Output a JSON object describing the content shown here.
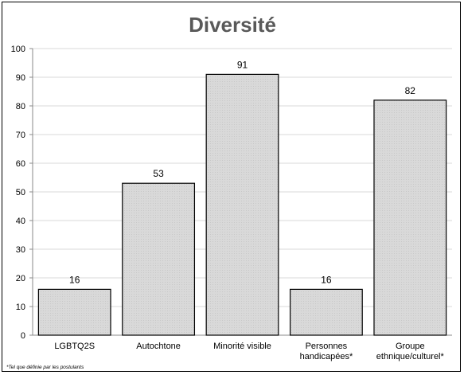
{
  "chart_data": {
    "type": "bar",
    "title": "Diversité",
    "categories": [
      [
        "LGBTQ2S"
      ],
      [
        "Autochtone"
      ],
      [
        "Minorité visible"
      ],
      [
        "Personnes",
        "handicapées*"
      ],
      [
        "Groupe",
        "ethnique/culturel*"
      ]
    ],
    "values": [
      16,
      53,
      91,
      16,
      82
    ],
    "ylim": [
      0,
      100
    ],
    "yticks": [
      0,
      10,
      20,
      30,
      40,
      50,
      60,
      70,
      80,
      90,
      100
    ],
    "grid": true,
    "legend": "none",
    "bar_fill": "#d9d9d9",
    "bar_pattern": "#c8c8c8",
    "bar_stroke": "#000000",
    "grid_color": "#d9d9d9",
    "footnote": "*Tel que définie par les postulants"
  }
}
